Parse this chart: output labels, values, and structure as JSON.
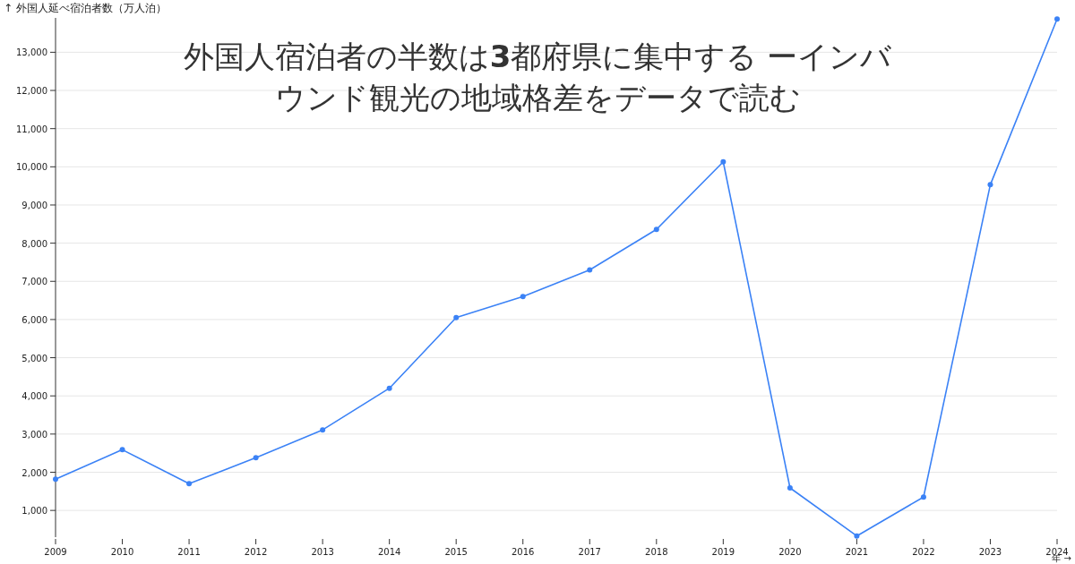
{
  "chart_data": {
    "type": "line",
    "title": "外国人宿泊者の半数は**3**都府県に集中する ーインバウンド観光の地域格差をデータで読む",
    "xlabel": "年 →",
    "ylabel": "↑ 外国人延べ宿泊者数（万人泊）",
    "x": [
      2009,
      2010,
      2011,
      2012,
      2013,
      2014,
      2015,
      2016,
      2017,
      2018,
      2019,
      2020,
      2021,
      2022,
      2023,
      2024
    ],
    "series": [
      {
        "color": "#3b82f6",
        "values": [
          1820,
          2590,
          1700,
          2380,
          3110,
          4200,
          6050,
          6600,
          7300,
          8360,
          10130,
          1590,
          330,
          1350,
          9530,
          13870
        ]
      }
    ],
    "xlim": [
      2009,
      2024
    ],
    "ylim": [
      300,
      13900
    ],
    "xticks": [
      2009,
      2010,
      2011,
      2012,
      2013,
      2014,
      2015,
      2016,
      2017,
      2018,
      2019,
      2020,
      2021,
      2022,
      2023,
      2024
    ],
    "yticks": [
      {
        "value": 1000,
        "label": "1,000"
      },
      {
        "value": 2000,
        "label": "2,000"
      },
      {
        "value": 3000,
        "label": "3,000"
      },
      {
        "value": 4000,
        "label": "4,000"
      },
      {
        "value": 5000,
        "label": "5,000"
      },
      {
        "value": 6000,
        "label": "6,000"
      },
      {
        "value": 7000,
        "label": "7,000"
      },
      {
        "value": 8000,
        "label": "8,000"
      },
      {
        "value": 9000,
        "label": "9,000"
      },
      {
        "value": 10000,
        "label": "10,000"
      },
      {
        "value": 11000,
        "label": "11,000"
      },
      {
        "value": 12000,
        "label": "12,000"
      },
      {
        "value": 13000,
        "label": "13,000"
      }
    ],
    "grid": "y",
    "marker": "circle",
    "line_style": "solid"
  }
}
